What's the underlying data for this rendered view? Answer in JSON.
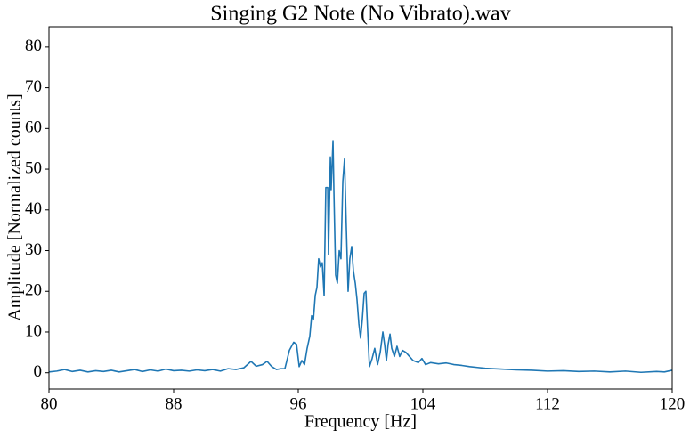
{
  "chart_data": {
    "type": "line",
    "title": "Singing G2 Note (No Vibrato).wav",
    "xlabel": "Frequency [Hz]",
    "ylabel": "Amplitude [Normalized counts]",
    "xlim": [
      80,
      120
    ],
    "ylim": [
      -4,
      85
    ],
    "xticks": [
      80,
      88,
      96,
      104,
      112,
      120
    ],
    "yticks": [
      0,
      10,
      20,
      30,
      40,
      50,
      60,
      70,
      80
    ],
    "grid": false,
    "x": [
      80,
      80.5,
      81,
      81.5,
      82,
      82.5,
      83,
      83.5,
      84,
      84.5,
      85,
      85.5,
      86,
      86.5,
      87,
      87.5,
      88,
      88.5,
      89,
      89.5,
      90,
      90.5,
      91,
      91.5,
      92,
      92.5,
      92.97,
      93.3,
      93.7,
      94,
      94.3,
      94.6,
      94.9,
      95.14,
      95.43,
      95.71,
      95.89,
      96.06,
      96.23,
      96.4,
      96.57,
      96.74,
      96.86,
      96.97,
      97.09,
      97.2,
      97.31,
      97.43,
      97.54,
      97.66,
      97.77,
      97.89,
      97.94,
      98.06,
      98.11,
      98.23,
      98.29,
      98.4,
      98.51,
      98.63,
      98.74,
      98.86,
      98.97,
      99.09,
      99.2,
      99.31,
      99.43,
      99.54,
      99.66,
      99.77,
      99.89,
      100.0,
      100.11,
      100.23,
      100.34,
      100.46,
      100.57,
      100.74,
      100.91,
      101.09,
      101.26,
      101.43,
      101.54,
      101.66,
      101.77,
      101.89,
      102.0,
      102.17,
      102.34,
      102.51,
      102.69,
      102.91,
      103.14,
      103.37,
      103.71,
      103.94,
      104.17,
      104.5,
      105,
      105.5,
      106,
      106.5,
      107,
      107.5,
      108,
      109,
      110,
      111,
      112,
      113,
      114,
      115,
      116,
      117,
      118,
      119,
      119.5,
      120
    ],
    "series": [
      {
        "color": "#1f77b4",
        "values": [
          0.2,
          0.4,
          0.8,
          0.3,
          0.6,
          0.2,
          0.5,
          0.3,
          0.6,
          0.2,
          0.5,
          0.8,
          0.3,
          0.7,
          0.4,
          0.9,
          0.5,
          0.6,
          0.4,
          0.7,
          0.5,
          0.8,
          0.4,
          1.0,
          0.8,
          1.2,
          2.8,
          1.6,
          2.0,
          2.8,
          1.5,
          0.8,
          1.0,
          1.0,
          5.5,
          7.5,
          7.0,
          1.5,
          3.0,
          2.0,
          6.0,
          9.0,
          14.0,
          13.0,
          19.0,
          21.0,
          28.0,
          26.0,
          27.0,
          19.0,
          45.5,
          45.5,
          29.0,
          53.0,
          45.0,
          57.0,
          44.0,
          24.0,
          22.0,
          30.0,
          28.0,
          47.0,
          52.5,
          35.0,
          20.0,
          28.0,
          31.0,
          25.0,
          22.0,
          18.0,
          12.0,
          8.5,
          13.0,
          19.5,
          20.0,
          10.0,
          1.5,
          3.5,
          6.0,
          2.0,
          5.0,
          10.0,
          7.0,
          3.0,
          7.0,
          9.5,
          6.0,
          4.0,
          6.5,
          4.0,
          5.5,
          5.0,
          4.0,
          3.0,
          2.5,
          3.5,
          2.0,
          2.5,
          2.2,
          2.4,
          2.0,
          1.8,
          1.5,
          1.3,
          1.1,
          0.9,
          0.7,
          0.6,
          0.4,
          0.5,
          0.3,
          0.4,
          0.2,
          0.4,
          0.1,
          0.3,
          0.2,
          0.6
        ]
      }
    ]
  }
}
